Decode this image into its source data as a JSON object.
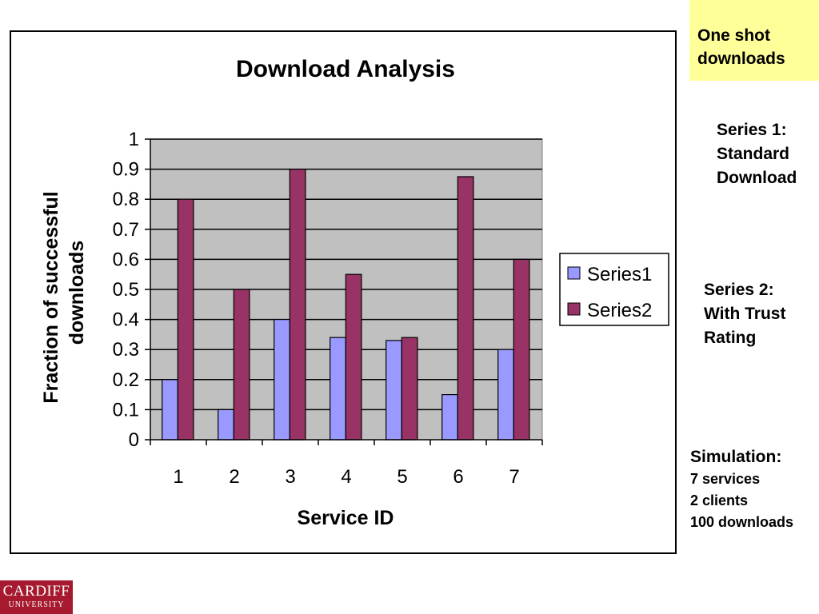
{
  "chart_data": {
    "type": "bar",
    "title": "Download Analysis",
    "xlabel": "Service ID",
    "ylabel": [
      "Fraction of successful",
      "downloads"
    ],
    "categories": [
      "1",
      "2",
      "3",
      "4",
      "5",
      "6",
      "7"
    ],
    "y_ticks": [
      "0",
      "0.1",
      "0.2",
      "0.3",
      "0.4",
      "0.5",
      "0.6",
      "0.7",
      "0.8",
      "0.9",
      "1"
    ],
    "ylim": [
      0,
      1
    ],
    "grid": true,
    "legend_position": "right",
    "series": [
      {
        "name": "Series1",
        "color": "#9999ff",
        "values": [
          0.2,
          0.1,
          0.4,
          0.34,
          0.33,
          0.15,
          0.3
        ]
      },
      {
        "name": "Series2",
        "color": "#993366",
        "values": [
          0.8,
          0.5,
          0.9,
          0.55,
          0.34,
          0.875,
          0.6
        ]
      }
    ],
    "plot_background": "#c0c0c0"
  },
  "notes": {
    "box_lines": [
      "One shot",
      "downloads"
    ],
    "series1_lines": [
      "Series 1:",
      "Standard",
      "Download"
    ],
    "series2_lines": [
      "Series 2:",
      "With Trust",
      "Rating"
    ],
    "simulation": {
      "heading": "Simulation:",
      "lines": [
        "7 services",
        "2 clients",
        "100 downloads"
      ]
    }
  },
  "logo": {
    "top": "CARDIFF",
    "bottom": "UNIVERSITY"
  }
}
